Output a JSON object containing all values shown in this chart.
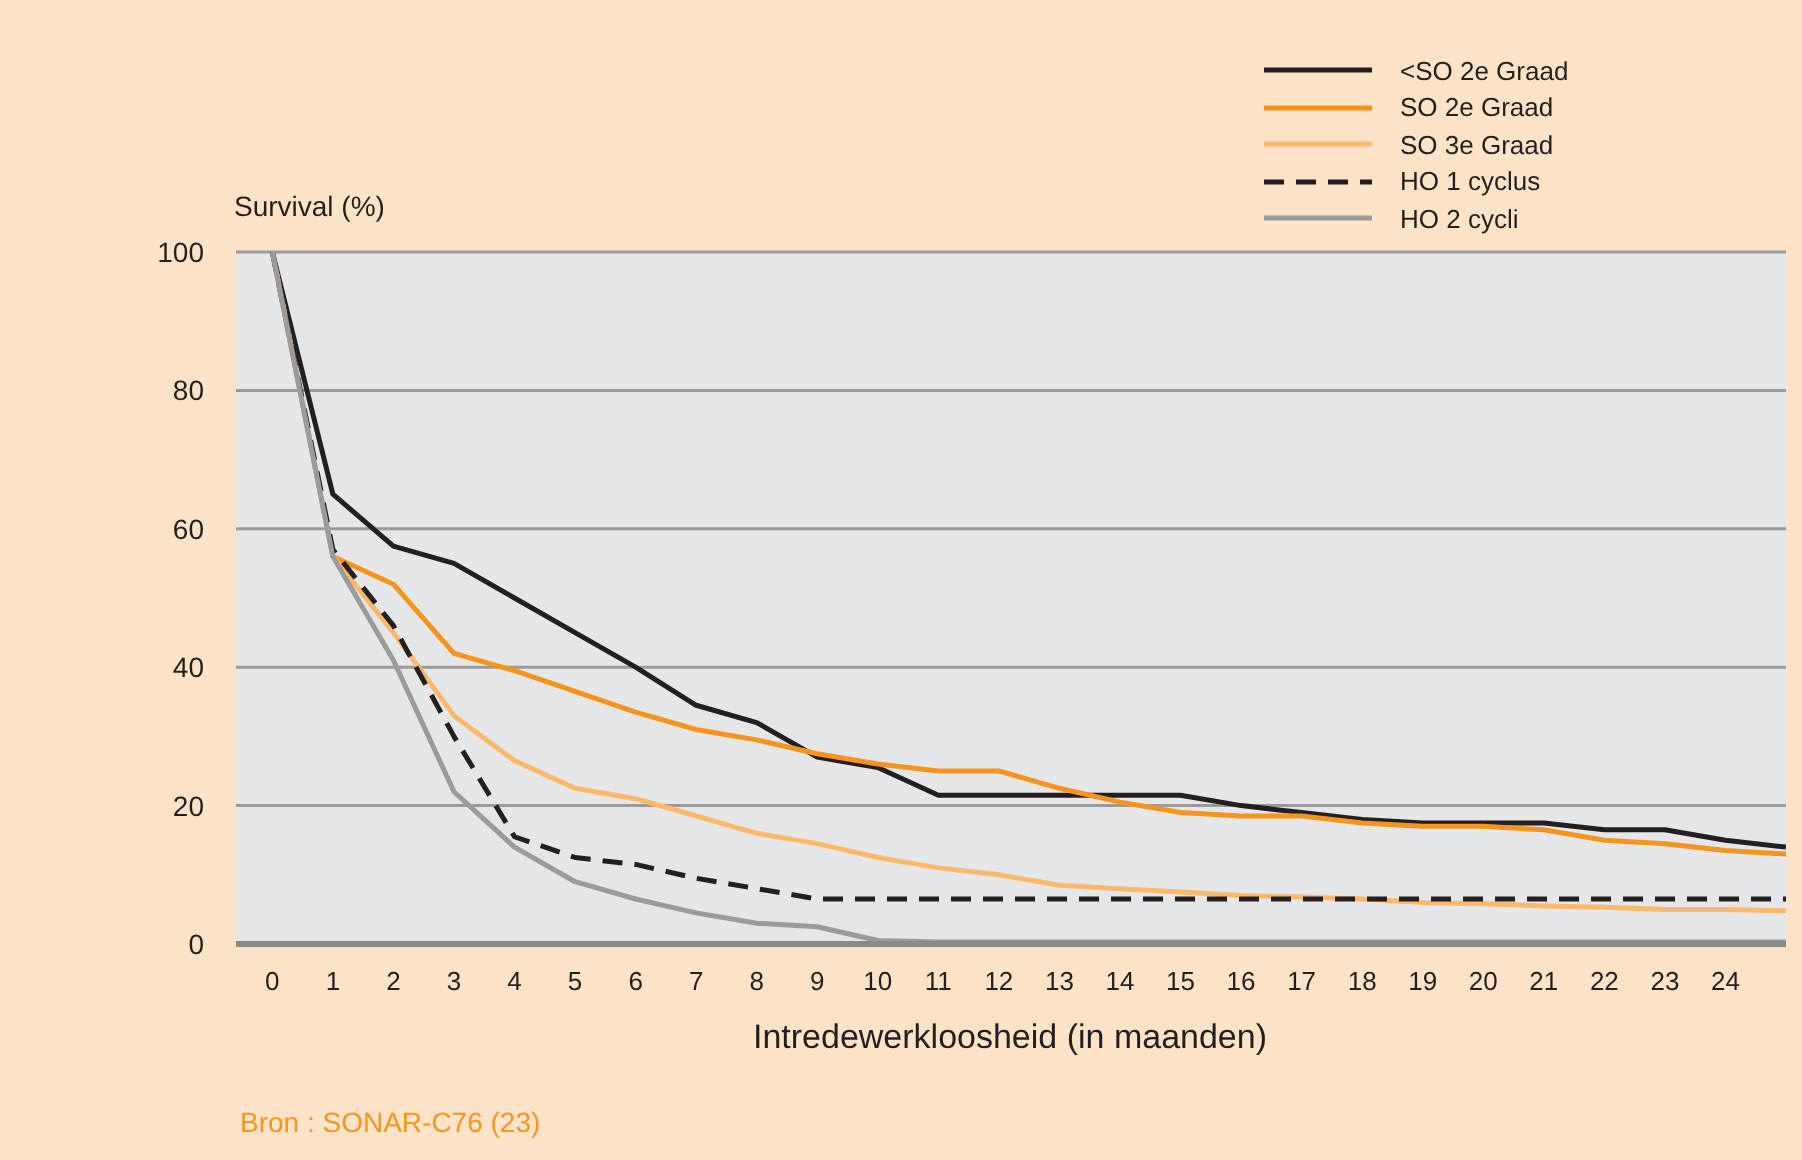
{
  "chart_data": {
    "type": "line",
    "ylabel": "Survival (%)",
    "xlabel": "Intredewerkloosheid (in maanden)",
    "annotations": [
      "Bron : SONAR-C76 (23)"
    ],
    "x": [
      0,
      1,
      2,
      3,
      4,
      5,
      6,
      7,
      8,
      9,
      10,
      11,
      12,
      13,
      14,
      15,
      16,
      17,
      18,
      19,
      20,
      21,
      22,
      23,
      24,
      25
    ],
    "xlim": [
      -0.6,
      25
    ],
    "xticks": [
      0,
      1,
      2,
      3,
      4,
      5,
      6,
      7,
      8,
      9,
      10,
      11,
      12,
      13,
      14,
      15,
      16,
      17,
      18,
      19,
      20,
      21,
      22,
      23,
      24
    ],
    "ylim": [
      0,
      100
    ],
    "yticks": [
      0,
      20,
      40,
      60,
      80,
      100
    ],
    "grid": "y",
    "legend": "top right",
    "marker": "none",
    "series": [
      {
        "name": "<SO 2e Graad",
        "color": "#231f20",
        "line_style": "solid",
        "values": [
          100,
          65,
          57.5,
          55,
          50,
          45,
          40,
          34.5,
          32,
          27,
          25.5,
          21.5,
          21.5,
          21.5,
          21.5,
          21.5,
          20,
          19,
          18,
          17.5,
          17.5,
          17.5,
          16.5,
          16.5,
          15,
          14
        ]
      },
      {
        "name": "SO 2e Graad",
        "color": "#f7941d",
        "line_style": "solid",
        "values": [
          100,
          56,
          52,
          42,
          39.5,
          36.5,
          33.5,
          31,
          29.5,
          27.5,
          26,
          25,
          25,
          22.5,
          20.5,
          19,
          18.5,
          18.5,
          17.5,
          17,
          17,
          16.5,
          15,
          14.5,
          13.5,
          13
        ]
      },
      {
        "name": "SO 3e Graad",
        "color": "#fdb96b",
        "line_style": "solid",
        "values": [
          100,
          56,
          45,
          33,
          26.5,
          22.5,
          21,
          18.5,
          16,
          14.5,
          12.5,
          11,
          10,
          8.5,
          8,
          7.5,
          7,
          6.8,
          6.5,
          6,
          5.8,
          5.5,
          5.3,
          5,
          5,
          4.8
        ]
      },
      {
        "name": "HO 1 cyclus",
        "color": "#231f20",
        "line_style": "dashed",
        "values": [
          100,
          57,
          46,
          30,
          15.5,
          12.5,
          11.5,
          9.5,
          8,
          6.5,
          6.5,
          6.5,
          6.5,
          6.5,
          6.5,
          6.5,
          6.5,
          6.5,
          6.5,
          6.5,
          6.5,
          6.5,
          6.5,
          6.5,
          6.5,
          6.5
        ]
      },
      {
        "name": "HO 2 cycli",
        "color": "#9b9b9b",
        "line_style": "solid",
        "values": [
          100,
          56,
          41,
          22,
          14,
          9,
          6.5,
          4.5,
          3,
          2.5,
          0.5,
          0.3,
          0.3,
          0.3,
          0.3,
          0.3,
          0.3,
          0.3,
          0.3,
          0.3,
          0.3,
          0.3,
          0.3,
          0.3,
          0.3,
          0.3
        ]
      }
    ]
  }
}
